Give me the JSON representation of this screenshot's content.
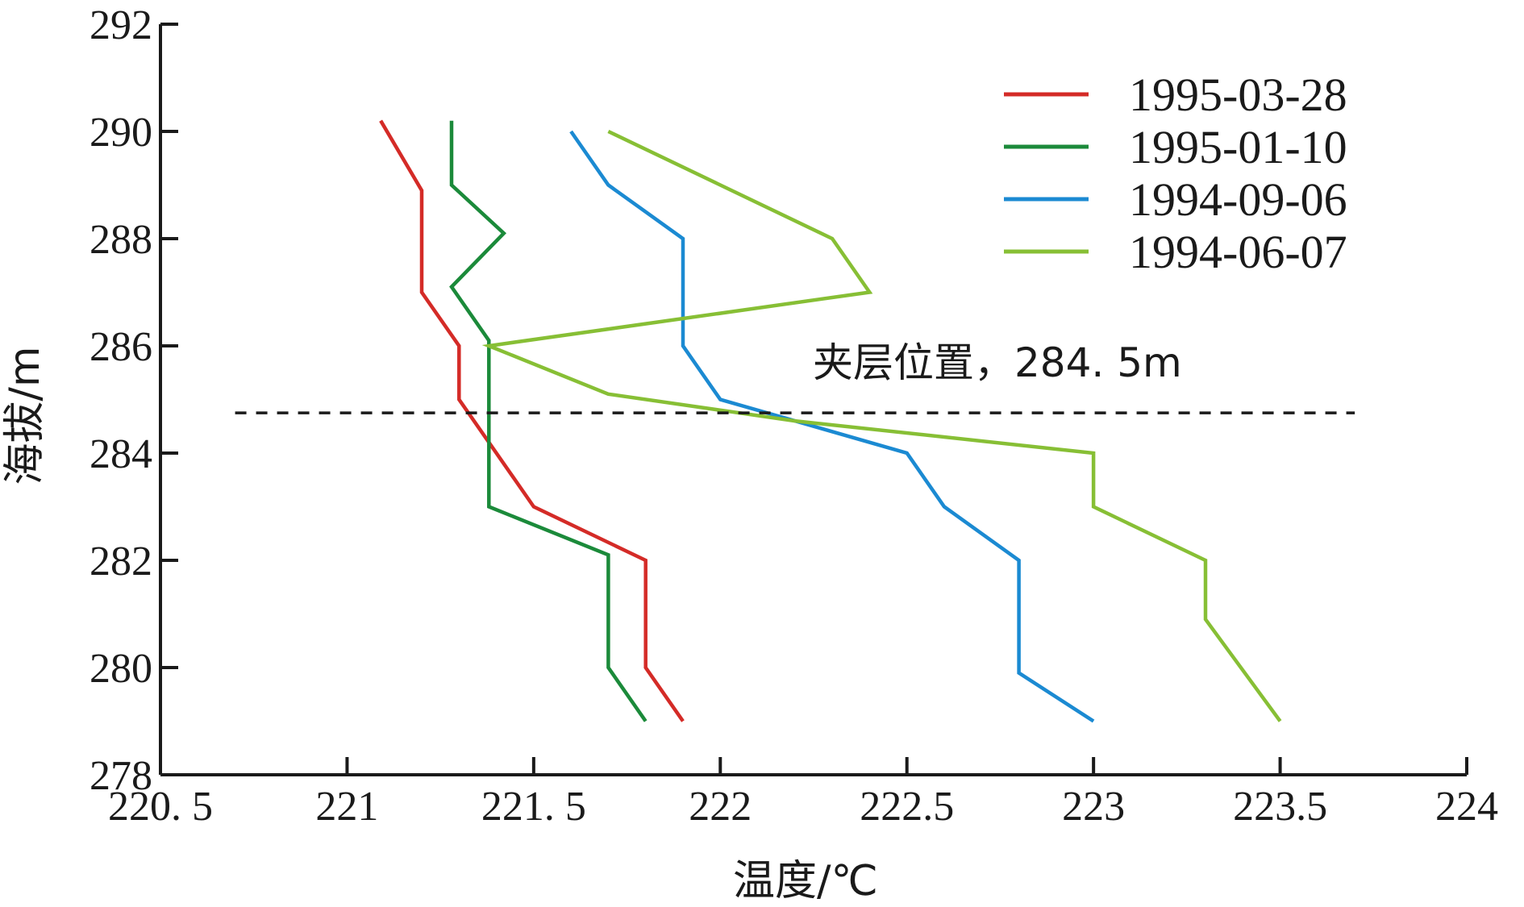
{
  "chart_data": {
    "type": "line",
    "xlabel": "温度/℃",
    "ylabel": "海拔/m",
    "xlim": [
      220.5,
      224
    ],
    "ylim": [
      278,
      292
    ],
    "x_ticks": [
      "220. 5",
      "221",
      "221. 5",
      "222",
      "222.5",
      "223",
      "223.5",
      "224"
    ],
    "y_ticks": [
      "278",
      "280",
      "282",
      "284",
      "286",
      "288",
      "290",
      "292"
    ],
    "legend_position": "top-right",
    "series": [
      {
        "name": "1995-03-28",
        "color": "#d42b27",
        "points": [
          [
            221.09,
            290.2
          ],
          [
            221.2,
            288.9
          ],
          [
            221.2,
            287.0
          ],
          [
            221.3,
            286.0
          ],
          [
            221.3,
            285.0
          ],
          [
            221.5,
            283.0
          ],
          [
            221.8,
            282.0
          ],
          [
            221.8,
            280.0
          ],
          [
            221.9,
            279.0
          ]
        ]
      },
      {
        "name": "1995-01-10",
        "color": "#1b8a3a",
        "points": [
          [
            221.28,
            290.2
          ],
          [
            221.28,
            289.0
          ],
          [
            221.42,
            288.1
          ],
          [
            221.28,
            287.1
          ],
          [
            221.38,
            286.1
          ],
          [
            221.38,
            283.0
          ],
          [
            221.7,
            282.1
          ],
          [
            221.7,
            280.0
          ],
          [
            221.8,
            279.0
          ]
        ]
      },
      {
        "name": "1994-09-06",
        "color": "#1b8ad2",
        "points": [
          [
            221.6,
            290.0
          ],
          [
            221.7,
            289.0
          ],
          [
            221.9,
            288.0
          ],
          [
            221.9,
            286.0
          ],
          [
            222.0,
            285.0
          ],
          [
            222.2,
            284.6
          ],
          [
            222.5,
            284.0
          ],
          [
            222.6,
            283.0
          ],
          [
            222.8,
            282.0
          ],
          [
            222.8,
            279.9
          ],
          [
            223.0,
            279.0
          ]
        ]
      },
      {
        "name": "1994-06-07",
        "color": "#87bf35",
        "points": [
          [
            221.7,
            290.0
          ],
          [
            222.0,
            289.0
          ],
          [
            222.3,
            288.0
          ],
          [
            222.4,
            287.0
          ],
          [
            221.38,
            286.0
          ],
          [
            221.7,
            285.1
          ],
          [
            222.2,
            284.6
          ],
          [
            223.0,
            284.0
          ],
          [
            223.0,
            283.0
          ],
          [
            223.3,
            282.0
          ],
          [
            223.3,
            280.9
          ],
          [
            223.5,
            279.0
          ]
        ]
      }
    ],
    "annotations": [
      {
        "text": "夹层位置，284. 5m",
        "y": 284.75,
        "style": "dashed-horizontal-line"
      }
    ]
  }
}
